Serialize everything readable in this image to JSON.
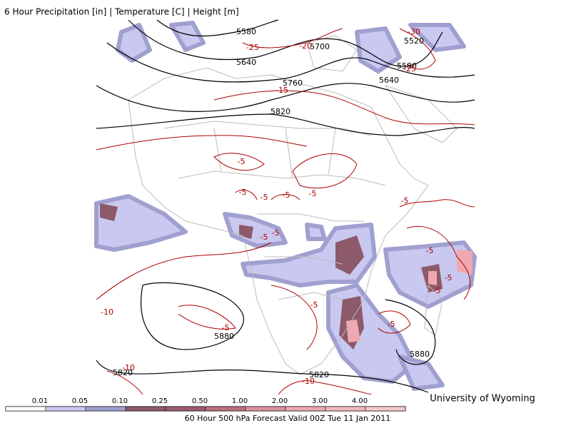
{
  "title": "6 Hour Precipitation [in] | Temperature [C] | Height [m]",
  "height_labels": [
    "5580",
    "5640",
    "5700",
    "5760",
    "5820",
    "5520",
    "5580",
    "5640",
    "5880",
    "5880",
    "5820",
    "5820"
  ],
  "temperature_labels": [
    "-25",
    "-20",
    "-30",
    "-25",
    "-15",
    "-5",
    "-5",
    "-5",
    "-5",
    "-5",
    "-5",
    "-5",
    "-5",
    "-5",
    "-5",
    "-5",
    "-10",
    "-5",
    "-5",
    "-5",
    "-10",
    "-10"
  ],
  "legend": {
    "ticks": [
      "0.01",
      "0.05",
      "0.10",
      "0.25",
      "0.50",
      "1.00",
      "2.00",
      "3.00",
      "4.00"
    ],
    "colors": [
      "#ffffff",
      "#c8c8f0",
      "#a0a0d0",
      "#8c5a6a",
      "#9a5a6a",
      "#b87080",
      "#d890a0",
      "#eaa8b0",
      "#f0b8bc",
      "#f4c8c8"
    ]
  },
  "footer": "60 Hour 500 hPa Forecast Valid 00Z Tue 11 Jan 2011",
  "credit": "University of Wyoming"
}
